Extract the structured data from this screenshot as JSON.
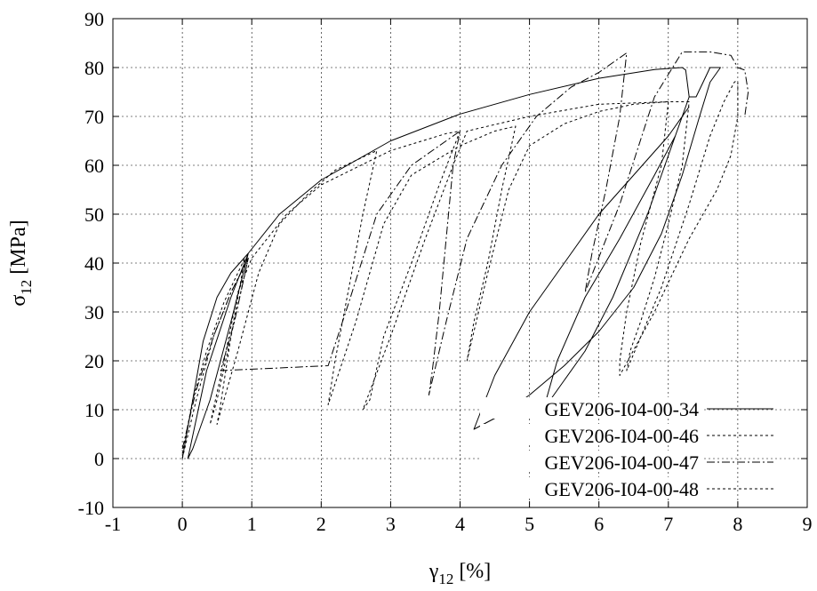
{
  "chart_data": {
    "type": "line",
    "title": "",
    "xlabel": "γ",
    "xlabel_sub": "12",
    "xlabel_unit": " [%]",
    "ylabel": "σ",
    "ylabel_sub": "12",
    "ylabel_unit": " [MPa]",
    "xlim": [
      -1,
      9
    ],
    "ylim": [
      -10,
      90
    ],
    "xticks": [
      -1,
      0,
      1,
      2,
      3,
      4,
      5,
      6,
      7,
      8,
      9
    ],
    "yticks": [
      -10,
      0,
      10,
      20,
      30,
      40,
      50,
      60,
      70,
      80,
      90
    ],
    "grid": true,
    "legend_position": "bottom-right",
    "series": [
      {
        "name": "GEV206-I04-00-34",
        "dash": "solid",
        "points": [
          [
            0,
            0
          ],
          [
            0.15,
            12
          ],
          [
            0.3,
            24
          ],
          [
            0.5,
            33
          ],
          [
            0.7,
            38
          ],
          [
            0.95,
            42
          ],
          [
            0.7,
            28
          ],
          [
            0.4,
            12
          ],
          [
            0.15,
            2
          ],
          [
            0.08,
            0
          ],
          [
            0.35,
            18
          ],
          [
            0.7,
            33
          ],
          [
            0.95,
            42
          ],
          [
            1.4,
            50
          ],
          [
            2.0,
            57
          ],
          [
            3.0,
            65
          ],
          [
            4.0,
            70.5
          ],
          [
            5.0,
            74.5
          ],
          [
            6.0,
            77.8
          ],
          [
            6.8,
            79.6
          ],
          [
            7.2,
            80
          ],
          [
            7.25,
            79.5
          ],
          [
            7.3,
            74
          ],
          [
            7.1,
            66
          ],
          [
            6.7,
            50
          ],
          [
            6.2,
            33
          ],
          [
            5.8,
            22
          ],
          [
            5.4,
            14
          ],
          [
            5.2,
            10
          ],
          [
            5.4,
            20
          ],
          [
            5.8,
            33
          ],
          [
            6.3,
            45
          ],
          [
            6.8,
            58
          ],
          [
            7.1,
            66
          ],
          [
            7.3,
            74
          ],
          [
            7.4,
            74
          ],
          [
            7.5,
            77
          ],
          [
            7.6,
            80
          ],
          [
            7.75,
            80
          ],
          [
            7.6,
            77
          ],
          [
            7.45,
            70
          ],
          [
            7.2,
            58
          ],
          [
            6.9,
            46
          ],
          [
            6.5,
            35
          ],
          [
            6.0,
            26
          ],
          [
            5.5,
            19
          ],
          [
            5.0,
            13
          ],
          [
            4.6,
            9
          ],
          [
            4.2,
            6
          ],
          [
            4.5,
            17
          ],
          [
            5.0,
            30
          ],
          [
            5.5,
            40
          ],
          [
            6.0,
            50
          ],
          [
            6.5,
            58
          ],
          [
            7.0,
            66
          ],
          [
            7.3,
            72
          ]
        ]
      },
      {
        "name": "GEV206-I04-00-46",
        "dash": "3,3",
        "points": [
          [
            0,
            0
          ],
          [
            0.2,
            12
          ],
          [
            0.45,
            25
          ],
          [
            0.7,
            34
          ],
          [
            0.95,
            41
          ],
          [
            0.7,
            25
          ],
          [
            0.5,
            12
          ],
          [
            0.4,
            7
          ],
          [
            0.6,
            20
          ],
          [
            0.8,
            34
          ],
          [
            1.0,
            41
          ],
          [
            1.5,
            50
          ],
          [
            2.0,
            56
          ],
          [
            3.0,
            63
          ],
          [
            3.8,
            66.5
          ],
          [
            4.0,
            67
          ],
          [
            3.7,
            56
          ],
          [
            3.3,
            40
          ],
          [
            2.9,
            25
          ],
          [
            2.7,
            12
          ],
          [
            2.6,
            10
          ],
          [
            3.0,
            25
          ],
          [
            3.5,
            45
          ],
          [
            3.9,
            60
          ],
          [
            4.1,
            67
          ],
          [
            5.0,
            70
          ],
          [
            6.0,
            72.5
          ],
          [
            7.0,
            73
          ],
          [
            7.3,
            73
          ],
          [
            7.2,
            60
          ],
          [
            7.0,
            48
          ],
          [
            6.8,
            37
          ],
          [
            6.6,
            28
          ],
          [
            6.45,
            22
          ],
          [
            6.4,
            18
          ],
          [
            6.9,
            35
          ],
          [
            7.3,
            52
          ],
          [
            7.6,
            66
          ],
          [
            7.8,
            73
          ],
          [
            7.95,
            77
          ],
          [
            8.0,
            77.5
          ]
        ]
      },
      {
        "name": "GEV206-I04-00-47",
        "dash": "9,3,2,3",
        "points": [
          [
            0,
            2
          ],
          [
            0.2,
            14
          ],
          [
            0.45,
            25
          ],
          [
            0.7,
            34
          ],
          [
            0.95,
            41
          ],
          [
            0.75,
            28
          ],
          [
            0.55,
            18
          ],
          [
            2.1,
            19
          ],
          [
            2.4,
            32
          ],
          [
            2.8,
            50
          ],
          [
            3.3,
            60
          ],
          [
            4.0,
            67
          ],
          [
            3.9,
            60
          ],
          [
            3.8,
            45
          ],
          [
            3.7,
            30
          ],
          [
            3.6,
            18
          ],
          [
            3.55,
            13
          ],
          [
            3.8,
            28
          ],
          [
            4.1,
            45
          ],
          [
            4.6,
            60
          ],
          [
            5.1,
            70
          ],
          [
            5.6,
            76
          ],
          [
            6.0,
            79
          ],
          [
            6.2,
            81
          ],
          [
            6.4,
            83
          ],
          [
            6.3,
            70
          ],
          [
            6.1,
            55
          ],
          [
            5.9,
            42
          ],
          [
            5.8,
            34
          ],
          [
            6.3,
            52
          ],
          [
            6.8,
            74
          ],
          [
            7.2,
            83.2
          ],
          [
            7.6,
            83.2
          ],
          [
            7.9,
            82.5
          ],
          [
            8.0,
            80
          ],
          [
            8.1,
            79.5
          ],
          [
            8.15,
            75
          ],
          [
            8.1,
            70
          ]
        ]
      },
      {
        "name": "GEV206-I04-00-48",
        "dash": "3,3",
        "points": [
          [
            0,
            1
          ],
          [
            0.15,
            12
          ],
          [
            0.35,
            22
          ],
          [
            0.6,
            32
          ],
          [
            0.9,
            41
          ],
          [
            0.7,
            25
          ],
          [
            0.55,
            11
          ],
          [
            0.5,
            7
          ],
          [
            0.8,
            22
          ],
          [
            1.1,
            38
          ],
          [
            1.4,
            48
          ],
          [
            1.8,
            54
          ],
          [
            2.2,
            59
          ],
          [
            2.5,
            61
          ],
          [
            2.8,
            63
          ],
          [
            2.6,
            50
          ],
          [
            2.4,
            35
          ],
          [
            2.2,
            20
          ],
          [
            2.1,
            11
          ],
          [
            2.5,
            28
          ],
          [
            2.9,
            48
          ],
          [
            3.3,
            58
          ],
          [
            4.0,
            64
          ],
          [
            4.5,
            67
          ],
          [
            4.8,
            68
          ],
          [
            4.6,
            55
          ],
          [
            4.4,
            40
          ],
          [
            4.2,
            28
          ],
          [
            4.1,
            20
          ],
          [
            4.4,
            38
          ],
          [
            4.7,
            55
          ],
          [
            5.0,
            64
          ],
          [
            5.5,
            68.5
          ],
          [
            6.0,
            71
          ],
          [
            6.5,
            72.5
          ],
          [
            7.0,
            73
          ],
          [
            6.9,
            60
          ],
          [
            6.6,
            44
          ],
          [
            6.4,
            30
          ],
          [
            6.3,
            20
          ],
          [
            6.3,
            17
          ],
          [
            6.8,
            30
          ],
          [
            7.3,
            45
          ],
          [
            7.7,
            55
          ],
          [
            7.9,
            62
          ],
          [
            8.0,
            70
          ],
          [
            8.0,
            77
          ]
        ]
      }
    ]
  }
}
